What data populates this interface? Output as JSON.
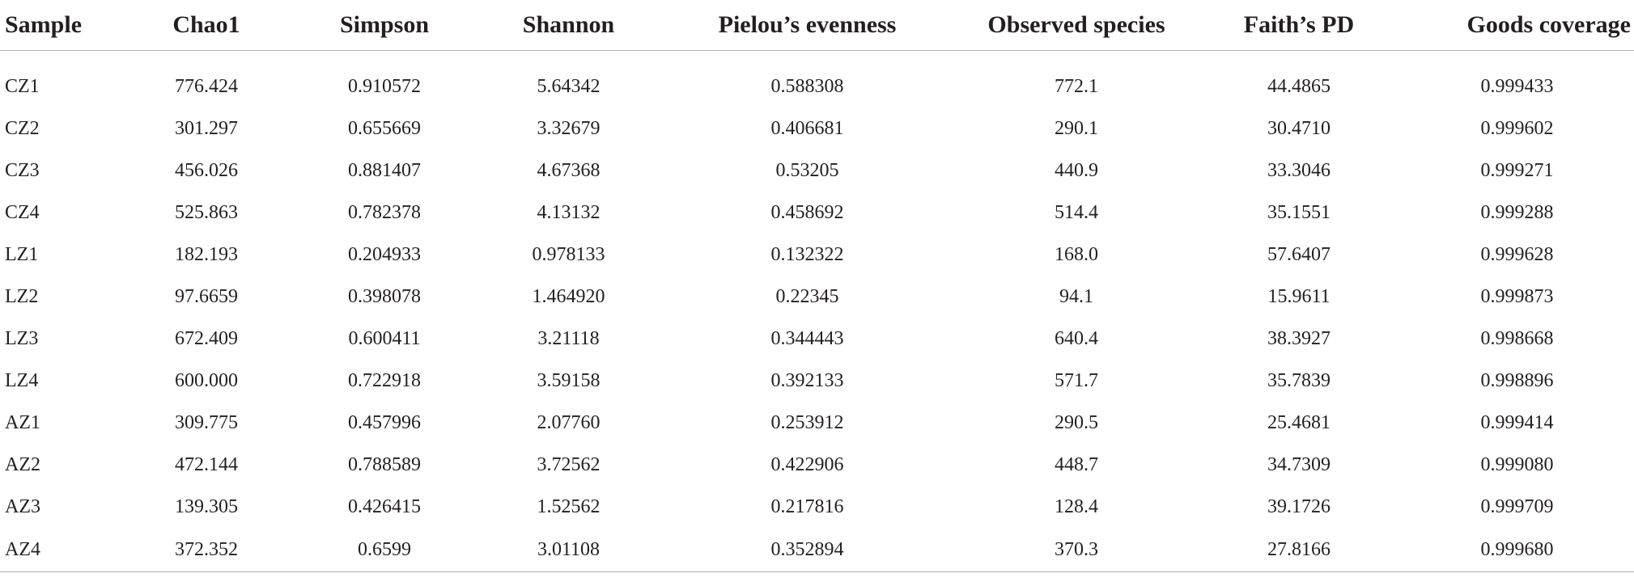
{
  "table": {
    "headers": [
      "Sample",
      "Chao1",
      "Simpson",
      "Shannon",
      "Pielou’s evenness",
      "Observed species",
      "Faith’s PD",
      "Goods coverage"
    ],
    "rows": [
      [
        "CZ1",
        "776.424",
        "0.910572",
        "5.64342",
        "0.588308",
        "772.1",
        "44.4865",
        "0.999433"
      ],
      [
        "CZ2",
        "301.297",
        "0.655669",
        "3.32679",
        "0.406681",
        "290.1",
        "30.4710",
        "0.999602"
      ],
      [
        "CZ3",
        "456.026",
        "0.881407",
        "4.67368",
        "0.53205",
        "440.9",
        "33.3046",
        "0.999271"
      ],
      [
        "CZ4",
        "525.863",
        "0.782378",
        "4.13132",
        "0.458692",
        "514.4",
        "35.1551",
        "0.999288"
      ],
      [
        "LZ1",
        "182.193",
        "0.204933",
        "0.978133",
        "0.132322",
        "168.0",
        "57.6407",
        "0.999628"
      ],
      [
        "LZ2",
        "97.6659",
        "0.398078",
        "1.464920",
        "0.22345",
        "94.1",
        "15.9611",
        "0.999873"
      ],
      [
        "LZ3",
        "672.409",
        "0.600411",
        "3.21118",
        "0.344443",
        "640.4",
        "38.3927",
        "0.998668"
      ],
      [
        "LZ4",
        "600.000",
        "0.722918",
        "3.59158",
        "0.392133",
        "571.7",
        "35.7839",
        "0.998896"
      ],
      [
        "AZ1",
        "309.775",
        "0.457996",
        "2.07760",
        "0.253912",
        "290.5",
        "25.4681",
        "0.999414"
      ],
      [
        "AZ2",
        "472.144",
        "0.788589",
        "3.72562",
        "0.422906",
        "448.7",
        "34.7309",
        "0.999080"
      ],
      [
        "AZ3",
        "139.305",
        "0.426415",
        "1.52562",
        "0.217816",
        "128.4",
        "39.1726",
        "0.999709"
      ],
      [
        "AZ4",
        "372.352",
        "0.6599",
        "3.01108",
        "0.352894",
        "370.3",
        "27.8166",
        "0.999680"
      ]
    ]
  }
}
